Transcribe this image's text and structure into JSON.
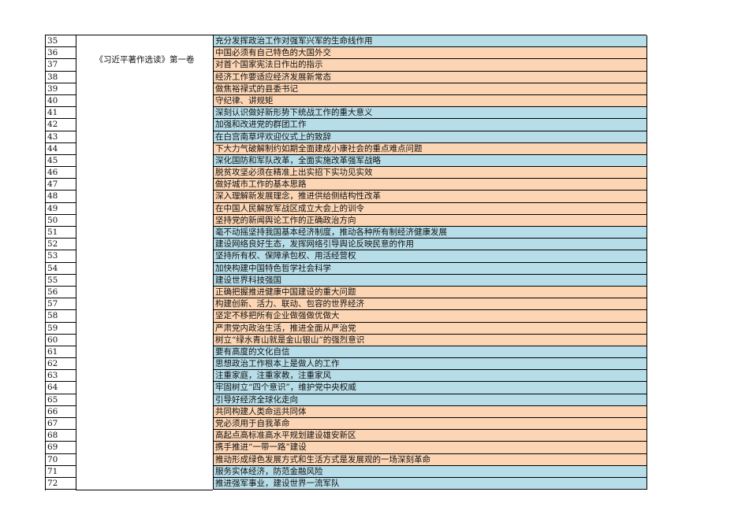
{
  "sheet": {
    "book": "《习近平著作选读》第一卷",
    "rows": [
      {
        "num": "35",
        "title": "充分发挥政治工作对强军兴军的生命线作用",
        "color": "blue"
      },
      {
        "num": "36",
        "title": "中国必须有自己特色的大国外交",
        "color": "orange"
      },
      {
        "num": "37",
        "title": "对首个国家宪法日作出的指示",
        "color": "orange"
      },
      {
        "num": "38",
        "title": "经济工作要适应经济发展新常态",
        "color": "orange"
      },
      {
        "num": "39",
        "title": "做焦裕禄式的县委书记",
        "color": "orange"
      },
      {
        "num": "40",
        "title": "守纪律、讲规矩",
        "color": "orange"
      },
      {
        "num": "41",
        "title": "深刻认识做好新形势下统战工作的重大意义",
        "color": "blue"
      },
      {
        "num": "42",
        "title": "加强和改进党的群团工作",
        "color": "blue"
      },
      {
        "num": "43",
        "title": "在白宫南草坪欢迎仪式上的致辞",
        "color": "blue"
      },
      {
        "num": "44",
        "title": "下大力气破解制约如期全面建成小康社会的重点难点问题",
        "color": "orange"
      },
      {
        "num": "45",
        "title": "深化国防和军队改革，全面实施改革强军战略",
        "color": "blue"
      },
      {
        "num": "46",
        "title": "脱贫攻坚必须在精准上出实招下实功见实效",
        "color": "orange"
      },
      {
        "num": "47",
        "title": "做好城市工作的基本思路",
        "color": "orange"
      },
      {
        "num": "48",
        "title": "深入理解新发展理念，推进供给侧结构性改革",
        "color": "orange"
      },
      {
        "num": "49",
        "title": "在中国人民解放军战区成立大会上的训令",
        "color": "orange"
      },
      {
        "num": "50",
        "title": "坚持党的新闻舆论工作的正确政治方向",
        "color": "orange"
      },
      {
        "num": "51",
        "title": "毫不动摇坚持我国基本经济制度，推动各种所有制经济健康发展",
        "color": "blue"
      },
      {
        "num": "52",
        "title": "建设网络良好生态，发挥网络引导舆论反映民意的作用",
        "color": "blue"
      },
      {
        "num": "53",
        "title": "坚持所有权、保障承包权、用活经营权",
        "color": "blue"
      },
      {
        "num": "54",
        "title": "加快构建中国特色哲学社会科学",
        "color": "blue"
      },
      {
        "num": "55",
        "title": "建设世界科技强国",
        "color": "blue"
      },
      {
        "num": "56",
        "title": "正确把握推进健康中国建设的重大问题",
        "color": "orange"
      },
      {
        "num": "57",
        "title": "构建创新、活力、联动、包容的世界经济",
        "color": "orange"
      },
      {
        "num": "58",
        "title": "坚定不移把所有企业做强做优做大",
        "color": "orange"
      },
      {
        "num": "59",
        "title": "严肃党内政治生活，推进全面从严治党",
        "color": "orange"
      },
      {
        "num": "60",
        "title": "树立“绿水青山就是金山银山”的强烈意识",
        "color": "orange"
      },
      {
        "num": "61",
        "title": "要有高度的文化自信",
        "color": "blue"
      },
      {
        "num": "62",
        "title": "思想政治工作根本上是做人的工作",
        "color": "blue"
      },
      {
        "num": "63",
        "title": "注重家庭，注重家教，注重家风",
        "color": "blue"
      },
      {
        "num": "64",
        "title": "牢固树立“四个意识”，维护党中央权威",
        "color": "blue"
      },
      {
        "num": "65",
        "title": "引导好经济全球化走向",
        "color": "blue"
      },
      {
        "num": "66",
        "title": "共同构建人类命运共同体",
        "color": "orange"
      },
      {
        "num": "67",
        "title": "党必须用于自我革命",
        "color": "orange"
      },
      {
        "num": "68",
        "title": "高起点高标准高水平规划建设雄安新区",
        "color": "orange"
      },
      {
        "num": "69",
        "title": "携手推进“一带一路”建设",
        "color": "orange"
      },
      {
        "num": "70",
        "title": "推动形成绿色发展方式和生活方式是发展观的一场深刻革命",
        "color": "orange"
      },
      {
        "num": "71",
        "title": "服务实体经济，防范金融风险",
        "color": "blue"
      },
      {
        "num": "72",
        "title": "推进强军事业，建设世界一流军队",
        "color": "blue"
      }
    ]
  }
}
